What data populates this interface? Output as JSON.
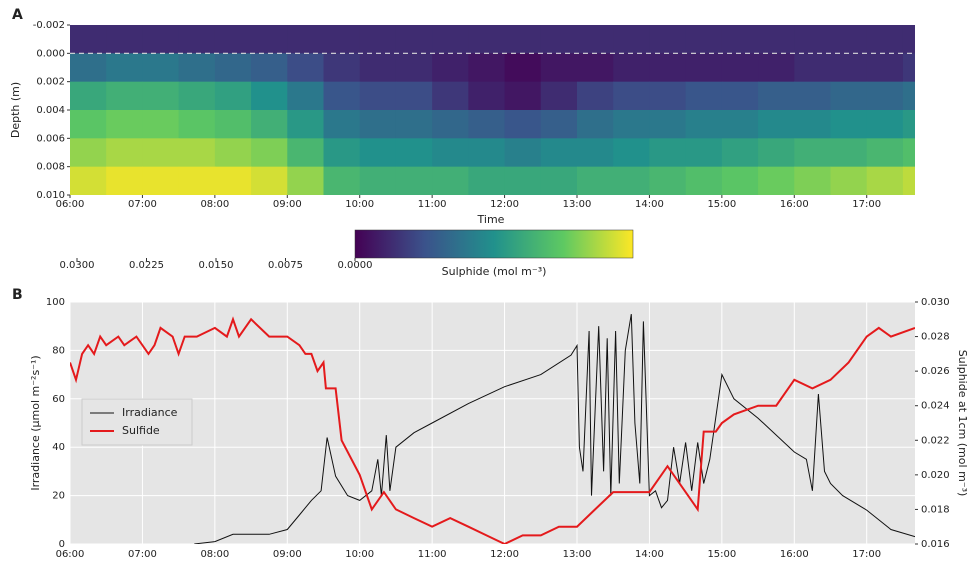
{
  "chart_data": [
    {
      "type": "heatmap",
      "panel_label": "A",
      "xlabel": "Time",
      "ylabel": "Depth (m)",
      "x": [
        "06:15",
        "06:45",
        "07:15",
        "07:45",
        "08:15",
        "08:45",
        "09:15",
        "09:45",
        "10:15",
        "10:45",
        "11:15",
        "11:45",
        "12:15",
        "12:45",
        "13:15",
        "13:45",
        "14:15",
        "14:45",
        "15:15",
        "15:45",
        "16:15",
        "16:45",
        "17:15",
        "17:45"
      ],
      "y": [
        -0.001,
        0.001,
        0.003,
        0.005,
        0.007,
        0.009
      ],
      "z": [
        [
          0.004,
          0.004,
          0.004,
          0.004,
          0.004,
          0.004,
          0.004,
          0.004,
          0.004,
          0.004,
          0.004,
          0.004,
          0.004,
          0.004,
          0.004,
          0.004,
          0.004,
          0.004,
          0.004,
          0.004,
          0.004,
          0.004,
          0.004,
          0.004
        ],
        [
          0.011,
          0.012,
          0.012,
          0.011,
          0.01,
          0.009,
          0.007,
          0.005,
          0.004,
          0.004,
          0.003,
          0.002,
          0.001,
          0.002,
          0.002,
          0.003,
          0.003,
          0.003,
          0.003,
          0.003,
          0.004,
          0.004,
          0.004,
          0.005
        ],
        [
          0.018,
          0.019,
          0.019,
          0.018,
          0.017,
          0.015,
          0.012,
          0.008,
          0.007,
          0.007,
          0.005,
          0.003,
          0.002,
          0.004,
          0.006,
          0.007,
          0.007,
          0.008,
          0.008,
          0.009,
          0.009,
          0.01,
          0.01,
          0.011
        ],
        [
          0.022,
          0.023,
          0.023,
          0.022,
          0.021,
          0.019,
          0.016,
          0.012,
          0.011,
          0.011,
          0.01,
          0.009,
          0.008,
          0.009,
          0.011,
          0.012,
          0.012,
          0.013,
          0.013,
          0.014,
          0.014,
          0.015,
          0.015,
          0.016
        ],
        [
          0.025,
          0.026,
          0.026,
          0.026,
          0.025,
          0.024,
          0.02,
          0.016,
          0.015,
          0.015,
          0.014,
          0.014,
          0.013,
          0.014,
          0.014,
          0.015,
          0.016,
          0.016,
          0.017,
          0.018,
          0.019,
          0.019,
          0.02,
          0.021
        ],
        [
          0.028,
          0.029,
          0.029,
          0.029,
          0.029,
          0.028,
          0.025,
          0.02,
          0.019,
          0.019,
          0.019,
          0.018,
          0.018,
          0.018,
          0.019,
          0.019,
          0.02,
          0.021,
          0.022,
          0.023,
          0.024,
          0.025,
          0.026,
          0.027
        ]
      ],
      "xlim": [
        "06:00",
        "17:40"
      ],
      "xticks": [
        "06:00",
        "07:00",
        "08:00",
        "09:00",
        "10:00",
        "11:00",
        "12:00",
        "13:00",
        "14:00",
        "15:00",
        "16:00",
        "17:00"
      ],
      "ylim": [
        0.01,
        -0.002
      ],
      "yticks": [
        -0.002,
        {
          "value": 0,
          "label": "0.000"
        },
        0.002,
        0.004,
        0.006,
        0.008,
        {
          "value": 0.01,
          "label": "0.010"
        }
      ],
      "hline": 0,
      "colormap": [
        "#440154",
        "#3b528b",
        "#21918c",
        "#5ec962",
        "#fde725"
      ],
      "colorbar": {
        "label": "Sulphide (mol m⁻³)",
        "lim": [
          0,
          0.03
        ],
        "ticks": [
          {
            "value": 0,
            "label": "0.0000"
          },
          {
            "value": 0.0075,
            "label": "0.0075"
          },
          {
            "value": 0.015,
            "label": "0.0150"
          },
          {
            "value": 0.0225,
            "label": "0.0225"
          },
          {
            "value": 0.03,
            "label": "0.0300"
          }
        ]
      }
    },
    {
      "type": "line",
      "panel_label": "B",
      "ylabel": "Irradiance (µmol m⁻²s⁻¹)",
      "y2label": "Sulphide at 1cm (mol m⁻³)",
      "xlim": [
        "06:00",
        "17:40"
      ],
      "xticks": [
        "06:00",
        "07:00",
        "08:00",
        "09:00",
        "10:00",
        "11:00",
        "12:00",
        "13:00",
        "14:00",
        "15:00",
        "16:00",
        "17:00"
      ],
      "ylim": [
        0,
        100
      ],
      "yticks": [
        0,
        20,
        40,
        60,
        80,
        100
      ],
      "y2lim": [
        0.016,
        0.03
      ],
      "y2ticks": [
        0.016,
        0.018,
        {
          "value": 0.02,
          "label": "0.020"
        },
        0.022,
        0.024,
        0.026,
        0.028,
        {
          "value": 0.03,
          "label": "0.030"
        }
      ],
      "grid": true,
      "legend": "center left",
      "series": [
        {
          "name": "Irradiance",
          "color": "#111111",
          "x": [
            "07:43",
            "08:00",
            "08:15",
            "08:45",
            "09:00",
            "09:10",
            "09:20",
            "09:28",
            "09:33",
            "09:40",
            "09:50",
            "10:00",
            "10:10",
            "10:15",
            "10:18",
            "10:22",
            "10:25",
            "10:30",
            "10:45",
            "11:00",
            "11:30",
            "12:00",
            "12:30",
            "12:55",
            "13:00",
            "13:02",
            "13:05",
            "13:10",
            "13:12",
            "13:18",
            "13:22",
            "13:25",
            "13:28",
            "13:32",
            "13:35",
            "13:40",
            "13:45",
            "13:48",
            "13:52",
            "13:55",
            "14:00",
            "14:05",
            "14:10",
            "14:15",
            "14:20",
            "14:25",
            "14:30",
            "14:35",
            "14:40",
            "14:45",
            "14:50",
            "15:00",
            "15:10",
            "15:30",
            "16:00",
            "16:10",
            "16:15",
            "16:20",
            "16:25",
            "16:30",
            "16:40",
            "17:00",
            "17:20",
            "17:40"
          ],
          "values": [
            0,
            1,
            4,
            4,
            6,
            12,
            18,
            22,
            44,
            28,
            20,
            18,
            22,
            35,
            20,
            45,
            22,
            40,
            46,
            50,
            58,
            65,
            70,
            78,
            82,
            40,
            30,
            88,
            20,
            90,
            30,
            85,
            20,
            88,
            25,
            80,
            95,
            50,
            25,
            92,
            20,
            22,
            15,
            18,
            40,
            25,
            42,
            22,
            42,
            25,
            35,
            70,
            60,
            52,
            38,
            35,
            22,
            62,
            30,
            25,
            20,
            14,
            6,
            3
          ]
        },
        {
          "name": "Sulfide",
          "color": "#e41a1c",
          "axis": "y2",
          "x": [
            "06:00",
            "06:05",
            "06:10",
            "06:15",
            "06:20",
            "06:25",
            "06:30",
            "06:40",
            "06:45",
            "06:55",
            "07:05",
            "07:10",
            "07:15",
            "07:25",
            "07:30",
            "07:35",
            "07:45",
            "08:00",
            "08:10",
            "08:15",
            "08:20",
            "08:30",
            "08:45",
            "09:00",
            "09:10",
            "09:15",
            "09:20",
            "09:25",
            "09:30",
            "09:32",
            "09:40",
            "09:45",
            "10:00",
            "10:10",
            "10:20",
            "10:30",
            "10:45",
            "11:00",
            "11:15",
            "11:30",
            "11:45",
            "12:00",
            "12:15",
            "12:30",
            "12:45",
            "13:00",
            "13:15",
            "13:30",
            "13:45",
            "14:00",
            "14:15",
            "14:30",
            "14:40",
            "14:45",
            "14:55",
            "15:00",
            "15:10",
            "15:30",
            "15:45",
            "16:00",
            "16:15",
            "16:30",
            "16:45",
            "17:00",
            "17:10",
            "17:20",
            "17:40"
          ],
          "values": [
            0.0265,
            0.0255,
            0.027,
            0.0275,
            0.027,
            0.028,
            0.0275,
            0.028,
            0.0275,
            0.028,
            0.027,
            0.0275,
            0.0285,
            0.028,
            0.027,
            0.028,
            0.028,
            0.0285,
            0.028,
            0.029,
            0.028,
            0.029,
            0.028,
            0.028,
            0.0275,
            0.027,
            0.027,
            0.026,
            0.0265,
            0.025,
            0.025,
            0.022,
            0.02,
            0.018,
            0.019,
            0.018,
            0.0175,
            0.017,
            0.0175,
            0.017,
            0.0165,
            0.016,
            0.0165,
            0.0165,
            0.017,
            0.017,
            0.018,
            0.019,
            0.019,
            0.019,
            0.0205,
            0.019,
            0.018,
            0.0225,
            0.0225,
            0.023,
            0.0235,
            0.024,
            0.024,
            0.0255,
            0.025,
            0.0255,
            0.0265,
            0.028,
            0.0285,
            0.028,
            0.0285
          ]
        }
      ]
    }
  ]
}
